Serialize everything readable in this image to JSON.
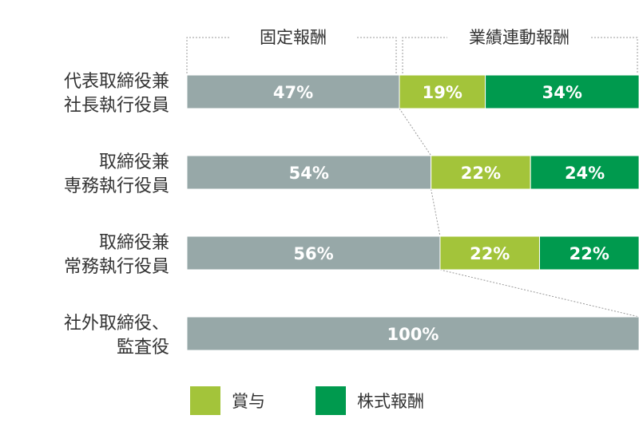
{
  "chart_data": {
    "type": "bar",
    "orientation": "horizontal",
    "stacked": true,
    "xlim": [
      0,
      100
    ],
    "unit": "%",
    "categories": [
      [
        "代表取締役兼",
        "社長執行役員"
      ],
      [
        "取締役兼",
        "専務執行役員"
      ],
      [
        "取締役兼",
        "常務執行役員"
      ],
      [
        "社外取締役、",
        "監査役"
      ]
    ],
    "series": [
      {
        "key": "fixed",
        "values": [
          47,
          54,
          56,
          100
        ],
        "labels": [
          "47%",
          "54%",
          "56%",
          "100%"
        ],
        "color": "#97a8a8"
      },
      {
        "key": "bonus",
        "name": "賞与",
        "values": [
          19,
          22,
          22,
          0
        ],
        "labels": [
          "19%",
          "22%",
          "22%",
          ""
        ],
        "color": "#a3c43a"
      },
      {
        "key": "stock",
        "name": "株式報酬",
        "values": [
          34,
          24,
          22,
          0
        ],
        "labels": [
          "34%",
          "24%",
          "22%",
          ""
        ],
        "color": "#009a4e"
      }
    ],
    "groups": {
      "fixed_label": "固定報酬",
      "variable_label": "業績連動報酬"
    },
    "legend": {
      "position": "bottom",
      "items": [
        "賞与",
        "株式報酬"
      ]
    }
  }
}
